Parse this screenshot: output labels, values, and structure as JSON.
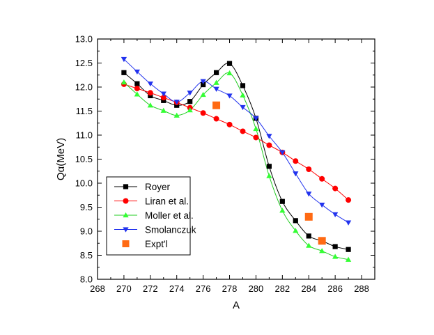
{
  "chart_data": {
    "type": "scatter",
    "xlabel": "A",
    "ylabel": "Qα(MeV)",
    "xlim": [
      268,
      289
    ],
    "ylim": [
      8.0,
      13.0
    ],
    "xticks": [
      268,
      270,
      272,
      274,
      276,
      278,
      280,
      282,
      284,
      286,
      288
    ],
    "yticks": [
      8.0,
      8.5,
      9.0,
      9.5,
      10.0,
      10.5,
      11.0,
      11.5,
      12.0,
      12.5,
      13.0
    ],
    "legend_position": "lower-left",
    "series": [
      {
        "name": "Royer",
        "marker": "square",
        "color": "#000000",
        "line_color": "#000000",
        "x": [
          270,
          271,
          272,
          273,
          274,
          275,
          276,
          277,
          278,
          279,
          280,
          281,
          282,
          283,
          284,
          285,
          286,
          287
        ],
        "y": [
          12.3,
          12.07,
          11.82,
          11.72,
          11.62,
          11.7,
          12.05,
          12.3,
          12.49,
          12.03,
          11.35,
          10.35,
          9.62,
          9.22,
          8.9,
          8.8,
          8.68,
          8.62
        ]
      },
      {
        "name": "Liran et al.",
        "marker": "circle",
        "color": "#ff0000",
        "line_color": "#ff0000",
        "x": [
          270,
          271,
          272,
          273,
          274,
          275,
          276,
          277,
          278,
          279,
          280,
          281,
          282,
          283,
          284,
          285,
          286,
          287
        ],
        "y": [
          12.06,
          11.97,
          11.88,
          11.78,
          11.68,
          11.57,
          11.46,
          11.34,
          11.22,
          11.08,
          10.95,
          10.79,
          10.64,
          10.46,
          10.29,
          10.09,
          9.89,
          9.65
        ]
      },
      {
        "name": "Moller et al.",
        "marker": "triangle-up",
        "color": "#33ff33",
        "line_color": "#22cc22",
        "x": [
          270,
          271,
          272,
          273,
          274,
          275,
          276,
          277,
          278,
          279,
          280,
          281,
          282,
          283,
          284,
          285,
          286,
          287
        ],
        "y": [
          12.1,
          11.85,
          11.62,
          11.51,
          11.41,
          11.52,
          11.84,
          12.09,
          12.29,
          11.83,
          11.13,
          10.15,
          9.43,
          9.01,
          8.7,
          8.59,
          8.47,
          8.41
        ]
      },
      {
        "name": "Smolanczuk",
        "marker": "triangle-down",
        "color": "#2233ee",
        "line_color": "#2233ee",
        "x": [
          270,
          271,
          272,
          273,
          274,
          275,
          276,
          277,
          278,
          279,
          280,
          281,
          282,
          283,
          284,
          285,
          286,
          287
        ],
        "y": [
          12.58,
          12.32,
          12.07,
          11.86,
          11.69,
          11.88,
          12.12,
          11.96,
          11.82,
          11.58,
          11.35,
          10.98,
          10.64,
          10.2,
          9.78,
          9.55,
          9.35,
          9.18
        ]
      },
      {
        "name": "Expt'l",
        "marker": "square",
        "color": "#ff6a13",
        "line_color": "",
        "x": [
          277,
          284,
          285
        ],
        "y": [
          11.62,
          9.3,
          8.8
        ]
      }
    ]
  }
}
